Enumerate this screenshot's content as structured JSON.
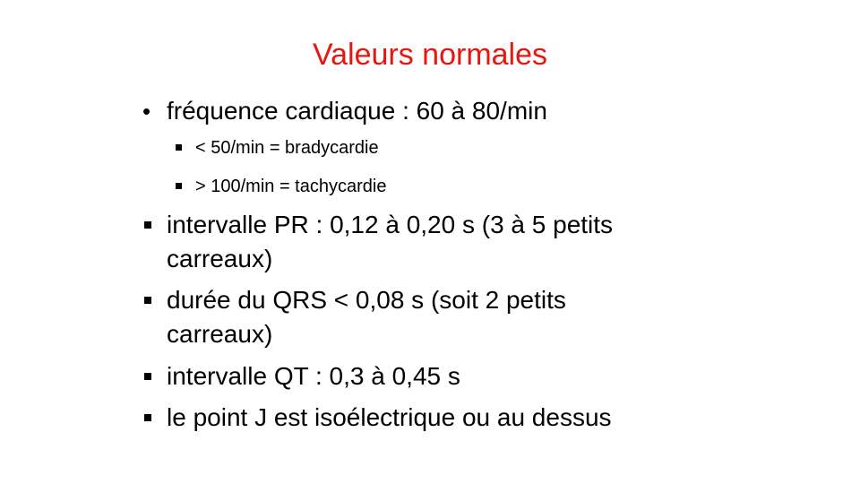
{
  "slide": {
    "title": "Valeurs normales",
    "items": [
      {
        "bullet": "round",
        "lines": [
          "fréquence cardiaque : 60 à 80/min"
        ],
        "subitems": [
          "< 50/min = bradycardie",
          "> 100/min = tachycardie"
        ]
      },
      {
        "bullet": "square",
        "lines": [
          "intervalle PR : 0,12 à 0,20 s (3 à 5 petits",
          "carreaux)"
        ]
      },
      {
        "bullet": "square",
        "lines": [
          "durée du QRS < 0,08 s (soit 2 petits",
          "carreaux)"
        ]
      },
      {
        "bullet": "square",
        "lines": [
          "intervalle QT : 0,3 à 0,45 s"
        ]
      },
      {
        "bullet": "square",
        "lines": [
          "le point J est isoélectrique ou au dessus"
        ]
      }
    ]
  }
}
